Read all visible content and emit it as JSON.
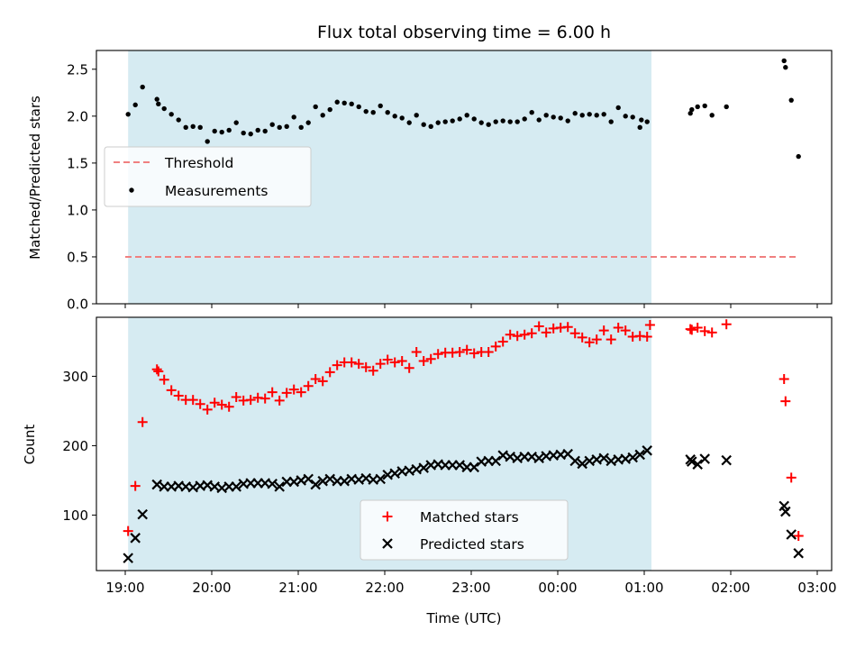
{
  "chart_data": [
    {
      "type": "scatter",
      "title": "Flux total observing time = 6.00 h",
      "xlabel": "",
      "ylabel": "Matched/Predicted stars",
      "xlim": [
        "18:40",
        "03:10"
      ],
      "ylim": [
        0,
        2.7
      ],
      "yticks": [
        0.0,
        0.5,
        1.0,
        1.5,
        2.0,
        2.5
      ],
      "ytick_labels": [
        "0.0",
        "0.5",
        "1.0",
        "1.5",
        "2.0",
        "2.5"
      ],
      "shaded_span": [
        "19:02",
        "01:05"
      ],
      "legend_position": "center-left",
      "threshold": {
        "name": "Threshold",
        "value": 0.5,
        "x_range": [
          "19:00",
          "02:45"
        ],
        "color": "#f08080",
        "style": "dashed"
      },
      "series": [
        {
          "name": "Measurements",
          "color": "#000000",
          "marker": "dot",
          "points": [
            [
              "19:02",
              2.02
            ],
            [
              "19:07",
              2.12
            ],
            [
              "19:12",
              2.31
            ],
            [
              "19:22",
              2.18
            ],
            [
              "19:23",
              2.13
            ],
            [
              "19:27",
              2.08
            ],
            [
              "19:32",
              2.02
            ],
            [
              "19:37",
              1.96
            ],
            [
              "19:42",
              1.88
            ],
            [
              "19:47",
              1.89
            ],
            [
              "19:52",
              1.88
            ],
            [
              "19:57",
              1.73
            ],
            [
              "20:02",
              1.84
            ],
            [
              "20:07",
              1.83
            ],
            [
              "20:12",
              1.85
            ],
            [
              "20:17",
              1.93
            ],
            [
              "20:22",
              1.82
            ],
            [
              "20:27",
              1.81
            ],
            [
              "20:32",
              1.85
            ],
            [
              "20:37",
              1.84
            ],
            [
              "20:42",
              1.91
            ],
            [
              "20:47",
              1.88
            ],
            [
              "20:52",
              1.89
            ],
            [
              "20:57",
              1.99
            ],
            [
              "21:02",
              1.88
            ],
            [
              "21:07",
              1.93
            ],
            [
              "21:12",
              2.1
            ],
            [
              "21:17",
              2.01
            ],
            [
              "21:22",
              2.07
            ],
            [
              "21:27",
              2.15
            ],
            [
              "21:32",
              2.14
            ],
            [
              "21:37",
              2.13
            ],
            [
              "21:42",
              2.1
            ],
            [
              "21:47",
              2.05
            ],
            [
              "21:52",
              2.04
            ],
            [
              "21:57",
              2.11
            ],
            [
              "22:02",
              2.04
            ],
            [
              "22:07",
              2.0
            ],
            [
              "22:12",
              1.98
            ],
            [
              "22:17",
              1.93
            ],
            [
              "22:22",
              2.01
            ],
            [
              "22:27",
              1.91
            ],
            [
              "22:32",
              1.89
            ],
            [
              "22:37",
              1.93
            ],
            [
              "22:42",
              1.94
            ],
            [
              "22:47",
              1.95
            ],
            [
              "22:52",
              1.97
            ],
            [
              "22:57",
              2.01
            ],
            [
              "23:02",
              1.97
            ],
            [
              "23:07",
              1.93
            ],
            [
              "23:12",
              1.91
            ],
            [
              "23:17",
              1.94
            ],
            [
              "23:22",
              1.95
            ],
            [
              "23:27",
              1.94
            ],
            [
              "23:32",
              1.94
            ],
            [
              "23:37",
              1.97
            ],
            [
              "23:42",
              2.04
            ],
            [
              "23:47",
              1.96
            ],
            [
              "23:52",
              2.01
            ],
            [
              "23:57",
              1.99
            ],
            [
              "00:02",
              1.98
            ],
            [
              "00:07",
              1.95
            ],
            [
              "00:12",
              2.03
            ],
            [
              "00:17",
              2.01
            ],
            [
              "00:22",
              2.02
            ],
            [
              "00:27",
              2.01
            ],
            [
              "00:32",
              2.02
            ],
            [
              "00:37",
              1.94
            ],
            [
              "00:42",
              2.09
            ],
            [
              "00:47",
              2.0
            ],
            [
              "00:52",
              1.99
            ],
            [
              "00:57",
              1.88
            ],
            [
              "00:58",
              1.96
            ],
            [
              "01:02",
              1.94
            ],
            [
              "01:32",
              2.03
            ],
            [
              "01:33",
              2.07
            ],
            [
              "01:37",
              2.1
            ],
            [
              "01:42",
              2.11
            ],
            [
              "01:47",
              2.01
            ],
            [
              "01:57",
              2.1
            ],
            [
              "02:37",
              2.59
            ],
            [
              "02:38",
              2.52
            ],
            [
              "02:42",
              2.17
            ],
            [
              "02:47",
              1.57
            ]
          ]
        }
      ]
    },
    {
      "type": "scatter",
      "title": "",
      "xlabel": "Time (UTC)",
      "ylabel": "Count",
      "xlim": [
        "18:40",
        "03:10"
      ],
      "ylim": [
        20,
        385
      ],
      "yticks": [
        100,
        200,
        300
      ],
      "ytick_labels": [
        "100",
        "200",
        "300"
      ],
      "xticks": [
        "19:00",
        "20:00",
        "21:00",
        "22:00",
        "23:00",
        "00:00",
        "01:00",
        "02:00",
        "03:00"
      ],
      "shaded_span": [
        "19:02",
        "01:05"
      ],
      "legend_position": "lower-center",
      "series": [
        {
          "name": "Matched stars",
          "color": "#ff0000",
          "marker": "plus",
          "points": [
            [
              "19:02",
              77
            ],
            [
              "19:07",
              142
            ],
            [
              "19:12",
              234
            ],
            [
              "19:22",
              310
            ],
            [
              "19:23",
              307
            ],
            [
              "19:27",
              295
            ],
            [
              "19:32",
              280
            ],
            [
              "19:37",
              272
            ],
            [
              "19:42",
              266
            ],
            [
              "19:47",
              266
            ],
            [
              "19:52",
              260
            ],
            [
              "19:57",
              252
            ],
            [
              "20:02",
              262
            ],
            [
              "20:07",
              259
            ],
            [
              "20:12",
              256
            ],
            [
              "20:17",
              270
            ],
            [
              "20:22",
              265
            ],
            [
              "20:27",
              266
            ],
            [
              "20:32",
              269
            ],
            [
              "20:37",
              268
            ],
            [
              "20:42",
              277
            ],
            [
              "20:47",
              265
            ],
            [
              "20:52",
              276
            ],
            [
              "20:57",
              281
            ],
            [
              "21:02",
              277
            ],
            [
              "21:07",
              286
            ],
            [
              "21:12",
              296
            ],
            [
              "21:17",
              293
            ],
            [
              "21:22",
              306
            ],
            [
              "21:27",
              316
            ],
            [
              "21:32",
              320
            ],
            [
              "21:37",
              320
            ],
            [
              "21:42",
              318
            ],
            [
              "21:47",
              313
            ],
            [
              "21:52",
              308
            ],
            [
              "21:57",
              318
            ],
            [
              "22:02",
              324
            ],
            [
              "22:07",
              320
            ],
            [
              "22:12",
              322
            ],
            [
              "22:17",
              312
            ],
            [
              "22:22",
              335
            ],
            [
              "22:27",
              322
            ],
            [
              "22:32",
              325
            ],
            [
              "22:37",
              332
            ],
            [
              "22:42",
              334
            ],
            [
              "22:47",
              334
            ],
            [
              "22:52",
              335
            ],
            [
              "22:57",
              338
            ],
            [
              "23:02",
              333
            ],
            [
              "23:07",
              335
            ],
            [
              "23:12",
              335
            ],
            [
              "23:17",
              343
            ],
            [
              "23:22",
              350
            ],
            [
              "23:27",
              360
            ],
            [
              "23:32",
              358
            ],
            [
              "23:37",
              360
            ],
            [
              "23:42",
              362
            ],
            [
              "23:47",
              372
            ],
            [
              "23:52",
              363
            ],
            [
              "23:57",
              369
            ],
            [
              "00:02",
              370
            ],
            [
              "00:07",
              371
            ],
            [
              "00:12",
              362
            ],
            [
              "00:17",
              356
            ],
            [
              "00:22",
              349
            ],
            [
              "00:27",
              353
            ],
            [
              "00:32",
              366
            ],
            [
              "00:37",
              353
            ],
            [
              "00:42",
              370
            ],
            [
              "00:47",
              366
            ],
            [
              "00:52",
              357
            ],
            [
              "00:57",
              358
            ],
            [
              "01:02",
              357
            ],
            [
              "01:04",
              374
            ],
            [
              "01:32",
              368
            ],
            [
              "01:33",
              367
            ],
            [
              "01:37",
              370
            ],
            [
              "01:42",
              365
            ],
            [
              "01:47",
              363
            ],
            [
              "01:57",
              375
            ],
            [
              "02:37",
              296
            ],
            [
              "02:38",
              264
            ],
            [
              "02:42",
              154
            ],
            [
              "02:47",
              70
            ]
          ]
        },
        {
          "name": "Predicted stars",
          "color": "#000000",
          "marker": "x",
          "points": [
            [
              "19:02",
              38
            ],
            [
              "19:07",
              67
            ],
            [
              "19:12",
              101
            ],
            [
              "19:22",
              144
            ],
            [
              "19:27",
              141
            ],
            [
              "19:32",
              141
            ],
            [
              "19:37",
              142
            ],
            [
              "19:42",
              141
            ],
            [
              "19:47",
              140
            ],
            [
              "19:52",
              142
            ],
            [
              "19:57",
              143
            ],
            [
              "20:02",
              141
            ],
            [
              "20:07",
              139
            ],
            [
              "20:12",
              141
            ],
            [
              "20:17",
              141
            ],
            [
              "20:22",
              145
            ],
            [
              "20:27",
              146
            ],
            [
              "20:32",
              146
            ],
            [
              "20:37",
              146
            ],
            [
              "20:42",
              145
            ],
            [
              "20:47",
              141
            ],
            [
              "20:52",
              148
            ],
            [
              "20:57",
              148
            ],
            [
              "21:02",
              150
            ],
            [
              "21:07",
              152
            ],
            [
              "21:12",
              144
            ],
            [
              "21:17",
              149
            ],
            [
              "21:22",
              152
            ],
            [
              "21:27",
              149
            ],
            [
              "21:32",
              149
            ],
            [
              "21:37",
              152
            ],
            [
              "21:42",
              151
            ],
            [
              "21:47",
              153
            ],
            [
              "21:52",
              151
            ],
            [
              "21:57",
              152
            ],
            [
              "22:02",
              158
            ],
            [
              "22:07",
              160
            ],
            [
              "22:12",
              163
            ],
            [
              "22:17",
              164
            ],
            [
              "22:22",
              166
            ],
            [
              "22:27",
              168
            ],
            [
              "22:32",
              172
            ],
            [
              "22:37",
              173
            ],
            [
              "22:42",
              172
            ],
            [
              "22:47",
              172
            ],
            [
              "22:52",
              172
            ],
            [
              "22:57",
              169
            ],
            [
              "23:02",
              169
            ],
            [
              "23:07",
              177
            ],
            [
              "23:12",
              178
            ],
            [
              "23:17",
              178
            ],
            [
              "23:22",
              186
            ],
            [
              "23:27",
              184
            ],
            [
              "23:32",
              182
            ],
            [
              "23:37",
              184
            ],
            [
              "23:42",
              184
            ],
            [
              "23:47",
              182
            ],
            [
              "23:52",
              185
            ],
            [
              "23:57",
              186
            ],
            [
              "00:02",
              187
            ],
            [
              "00:07",
              188
            ],
            [
              "00:12",
              178
            ],
            [
              "00:17",
              174
            ],
            [
              "00:22",
              178
            ],
            [
              "00:27",
              180
            ],
            [
              "00:32",
              182
            ],
            [
              "00:37",
              178
            ],
            [
              "00:42",
              180
            ],
            [
              "00:47",
              181
            ],
            [
              "00:52",
              183
            ],
            [
              "00:57",
              187
            ],
            [
              "01:02",
              193
            ],
            [
              "01:32",
              180
            ],
            [
              "01:33",
              177
            ],
            [
              "01:37",
              173
            ],
            [
              "01:42",
              181
            ],
            [
              "01:57",
              179
            ],
            [
              "02:37",
              113
            ],
            [
              "02:38",
              105
            ],
            [
              "02:42",
              72
            ],
            [
              "02:47",
              45
            ]
          ]
        }
      ]
    }
  ]
}
